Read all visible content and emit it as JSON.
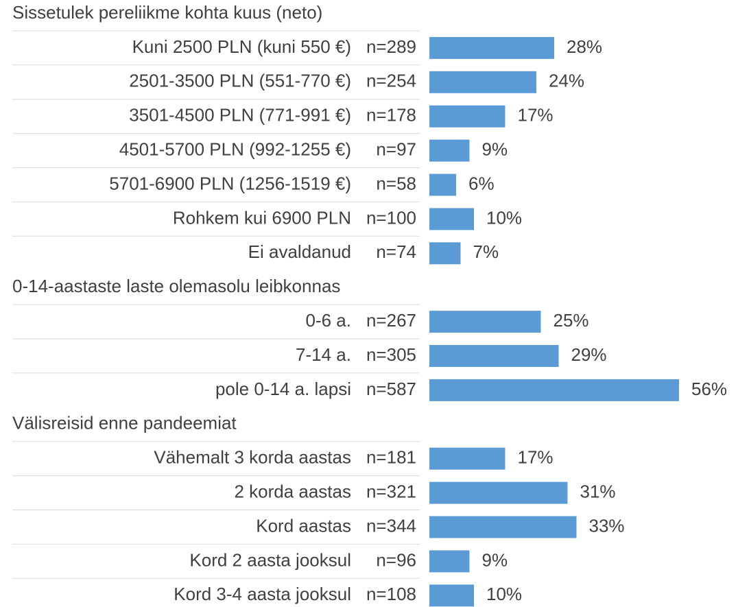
{
  "chart_data": {
    "type": "bar",
    "color": "#5b9bd5",
    "groups": [
      {
        "title": "Sissetulek pereliikme kohta kuus (neto)",
        "categories": [
          "Kuni 2500 PLN (kuni 550 €)",
          "2501-3500 PLN (551-770 €)",
          "3501-4500 PLN (771-991 €)",
          "4501-5700 PLN (992-1255 €)",
          "5701-6900 PLN (1256-1519 €)",
          "Rohkem kui 6900 PLN",
          "Ei avaldanud"
        ],
        "n_labels": [
          "n=289",
          "n=254",
          "n=178",
          "n=97",
          "n=58",
          "n=100",
          "n=74"
        ],
        "values": [
          28,
          24,
          17,
          9,
          6,
          10,
          7
        ],
        "value_labels": [
          "28%",
          "24%",
          "17%",
          "9%",
          "6%",
          "10%",
          "7%"
        ]
      },
      {
        "title": "0-14-aastaste laste olemasolu leibkonnas",
        "categories": [
          "0-6 a.",
          "7-14 a.",
          "pole 0-14 a. lapsi"
        ],
        "n_labels": [
          "n=267",
          "n=305",
          "n=587"
        ],
        "values": [
          25,
          29,
          56
        ],
        "value_labels": [
          "25%",
          "29%",
          "56%"
        ]
      },
      {
        "title": "Välisreisid enne pandeemiat",
        "categories": [
          "Vähemalt 3 korda aastas",
          "2 korda aastas",
          "Kord aastas",
          "Kord 2 aasta jooksul",
          "Kord 3-4 aasta jooksul"
        ],
        "n_labels": [
          "n=181",
          "n=321",
          "n=344",
          "n=96",
          "n=108"
        ],
        "values": [
          17,
          31,
          33,
          9,
          10
        ],
        "value_labels": [
          "17%",
          "31%",
          "33%",
          "9%",
          "10%"
        ]
      }
    ]
  }
}
